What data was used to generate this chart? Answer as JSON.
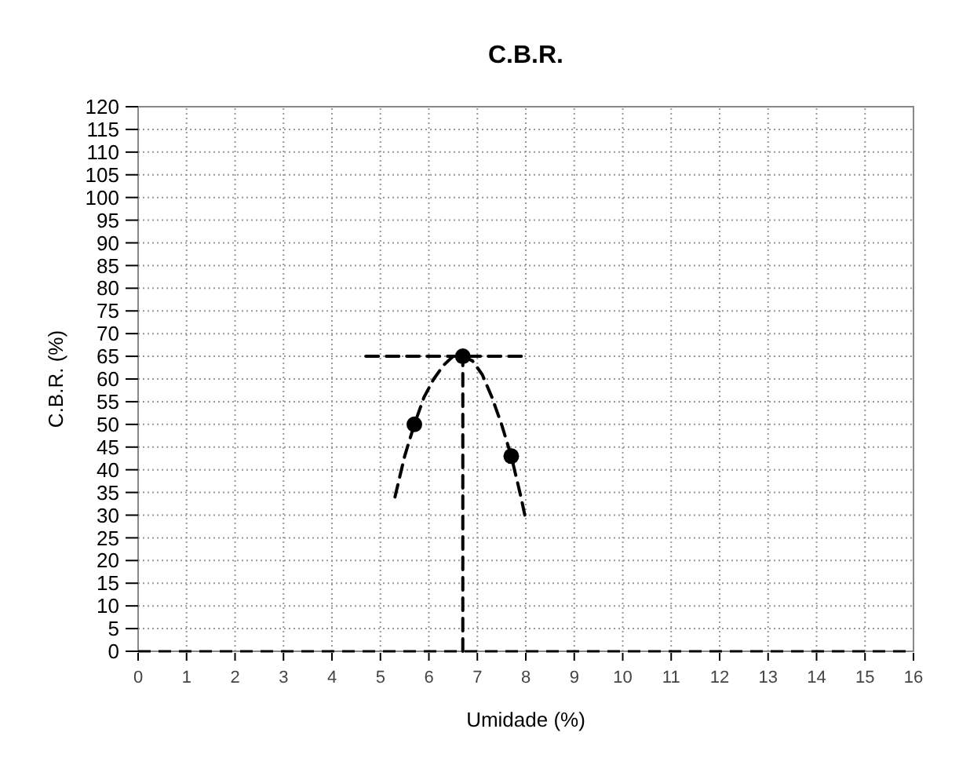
{
  "chart_data": {
    "type": "scatter",
    "title": "C.B.R.",
    "xlabel": "Umidade (%)",
    "ylabel": "C.B.R. (%)",
    "xlim": [
      0,
      16
    ],
    "xticks": [
      0,
      1,
      2,
      3,
      4,
      5,
      6,
      7,
      8,
      9,
      10,
      11,
      12,
      13,
      14,
      15,
      16
    ],
    "ylim": [
      0,
      120
    ],
    "yticks": [
      0,
      5,
      10,
      15,
      20,
      25,
      30,
      35,
      40,
      45,
      50,
      55,
      60,
      65,
      70,
      75,
      80,
      85,
      90,
      95,
      100,
      105,
      110,
      115,
      120
    ],
    "grid": true,
    "series": [
      {
        "type": "line",
        "line_style": "dashed",
        "marker": "none",
        "color": "#000000",
        "x": [
          5.3,
          5.5,
          5.7,
          5.9,
          6.1,
          6.3,
          6.5,
          6.7,
          6.9,
          7.1,
          7.3,
          7.5,
          7.7,
          7.9,
          8.0
        ],
        "values": [
          34,
          43,
          50,
          56,
          60,
          63,
          65,
          65,
          64,
          61,
          56,
          50,
          43,
          34,
          29
        ]
      },
      {
        "type": "line",
        "line_style": "dashed",
        "marker": "none",
        "color": "#000000",
        "x": [
          4.7,
          8.0
        ],
        "values": [
          65,
          65
        ]
      },
      {
        "type": "line",
        "line_style": "dashed",
        "marker": "none",
        "color": "#000000",
        "x": [
          6.7,
          6.7
        ],
        "values": [
          0,
          65
        ]
      },
      {
        "marker": "circle",
        "color": "#000000",
        "x": [
          5.7,
          6.7,
          7.7
        ],
        "values": [
          50,
          65,
          43
        ]
      }
    ],
    "ref_lines": [
      {
        "axis": "y",
        "value": 0,
        "line_style": "dashed",
        "color": "#000000"
      }
    ]
  }
}
